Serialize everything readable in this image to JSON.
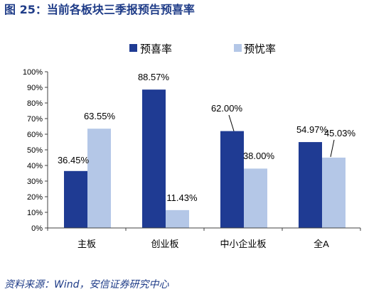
{
  "title": "图 25：当前各板块三季报预告预喜率",
  "source": "资料来源：Wind，安信证券研究中心",
  "colors": {
    "title": "#1F3C88",
    "source": "#1F3C88",
    "axis": "#404040"
  },
  "chart_data": {
    "type": "bar",
    "categories": [
      "主板",
      "创业板",
      "中小企业板",
      "全A"
    ],
    "series": [
      {
        "name": "预喜率",
        "color": "#1F3B93",
        "values": [
          36.45,
          88.57,
          62.0,
          54.97
        ],
        "data_labels": [
          "36.45%",
          "88.57%",
          "62.00%",
          "54.97%"
        ]
      },
      {
        "name": "预忧率",
        "color": "#B4C7E7",
        "values": [
          63.55,
          11.43,
          38.0,
          45.03
        ],
        "data_labels": [
          "63.55%",
          "11.43%",
          "38.00%",
          "45.03%"
        ]
      }
    ],
    "ylim": [
      0,
      100
    ],
    "yticks": [
      "0%",
      "10%",
      "20%",
      "30%",
      "40%",
      "50%",
      "60%",
      "70%",
      "80%",
      "90%",
      "100%"
    ],
    "legend": "top",
    "grid": false
  }
}
